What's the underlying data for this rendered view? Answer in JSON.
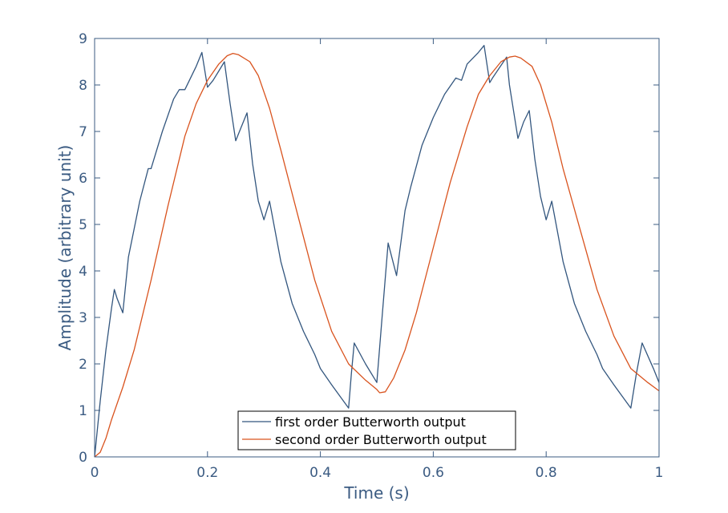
{
  "chart_data": {
    "type": "line",
    "xlabel": "Time (s)",
    "ylabel": "Amplitude (arbitrary unit)",
    "xlim": [
      0,
      1
    ],
    "ylim": [
      0,
      9
    ],
    "x_ticks": [
      0,
      0.2,
      0.4,
      0.6,
      0.8,
      1
    ],
    "x_tick_labels": [
      "0",
      "0.2",
      "0.4",
      "0.6",
      "0.8",
      "1"
    ],
    "y_ticks": [
      0,
      1,
      2,
      3,
      4,
      5,
      6,
      7,
      8,
      9
    ],
    "y_tick_labels": [
      "0",
      "1",
      "2",
      "3",
      "4",
      "5",
      "6",
      "7",
      "8",
      "9"
    ],
    "grid": false,
    "legend_position": "bottom-center",
    "axis_color": "#3b5b82",
    "series": [
      {
        "name": "first order Butterworth output",
        "color": "#33567e",
        "x": [
          0,
          0.01,
          0.02,
          0.03,
          0.035,
          0.04,
          0.05,
          0.06,
          0.08,
          0.095,
          0.1,
          0.12,
          0.14,
          0.15,
          0.16,
          0.18,
          0.19,
          0.2,
          0.21,
          0.22,
          0.23,
          0.24,
          0.25,
          0.26,
          0.27,
          0.28,
          0.29,
          0.3,
          0.31,
          0.33,
          0.35,
          0.37,
          0.39,
          0.4,
          0.42,
          0.45,
          0.455,
          0.46,
          0.48,
          0.5,
          0.51,
          0.52,
          0.535,
          0.55,
          0.56,
          0.58,
          0.6,
          0.62,
          0.64,
          0.65,
          0.66,
          0.68,
          0.69,
          0.7,
          0.705,
          0.73,
          0.735,
          0.75,
          0.76,
          0.77,
          0.78,
          0.79,
          0.8,
          0.81,
          0.83,
          0.85,
          0.87,
          0.89,
          0.9,
          0.92,
          0.95,
          0.96,
          0.97,
          0.99,
          1.0
        ],
        "y": [
          0,
          1.2,
          2.3,
          3.2,
          3.6,
          3.4,
          3.1,
          4.3,
          5.5,
          6.2,
          6.2,
          7.0,
          7.7,
          7.9,
          7.9,
          8.4,
          8.7,
          7.95,
          8.1,
          8.3,
          8.5,
          7.6,
          6.8,
          7.1,
          7.4,
          6.3,
          5.5,
          5.1,
          5.5,
          4.2,
          3.3,
          2.7,
          2.2,
          1.9,
          1.55,
          1.05,
          1.8,
          2.45,
          2.0,
          1.6,
          3.1,
          4.6,
          3.9,
          5.3,
          5.8,
          6.7,
          7.3,
          7.8,
          8.15,
          8.1,
          8.45,
          8.7,
          8.85,
          8.05,
          8.15,
          8.6,
          8.0,
          6.85,
          7.2,
          7.45,
          6.4,
          5.6,
          5.1,
          5.5,
          4.2,
          3.3,
          2.7,
          2.2,
          1.9,
          1.55,
          1.05,
          1.8,
          2.45,
          1.9,
          1.6
        ]
      },
      {
        "name": "second order Butterworth output",
        "color": "#d9531e",
        "x": [
          0,
          0.01,
          0.02,
          0.03,
          0.05,
          0.07,
          0.1,
          0.13,
          0.16,
          0.18,
          0.2,
          0.22,
          0.235,
          0.245,
          0.255,
          0.275,
          0.29,
          0.31,
          0.33,
          0.36,
          0.39,
          0.42,
          0.45,
          0.48,
          0.5,
          0.505,
          0.515,
          0.53,
          0.55,
          0.57,
          0.6,
          0.63,
          0.66,
          0.68,
          0.7,
          0.72,
          0.735,
          0.745,
          0.755,
          0.775,
          0.79,
          0.81,
          0.83,
          0.86,
          0.89,
          0.92,
          0.95,
          0.98,
          1.0
        ],
        "y": [
          0,
          0.1,
          0.4,
          0.8,
          1.5,
          2.3,
          3.8,
          5.4,
          6.9,
          7.6,
          8.1,
          8.45,
          8.63,
          8.68,
          8.65,
          8.5,
          8.2,
          7.5,
          6.6,
          5.2,
          3.8,
          2.7,
          2.0,
          1.65,
          1.45,
          1.38,
          1.4,
          1.7,
          2.3,
          3.1,
          4.5,
          5.9,
          7.1,
          7.8,
          8.2,
          8.5,
          8.6,
          8.62,
          8.58,
          8.4,
          8.0,
          7.2,
          6.2,
          4.9,
          3.6,
          2.6,
          1.9,
          1.6,
          1.42
        ]
      }
    ]
  }
}
